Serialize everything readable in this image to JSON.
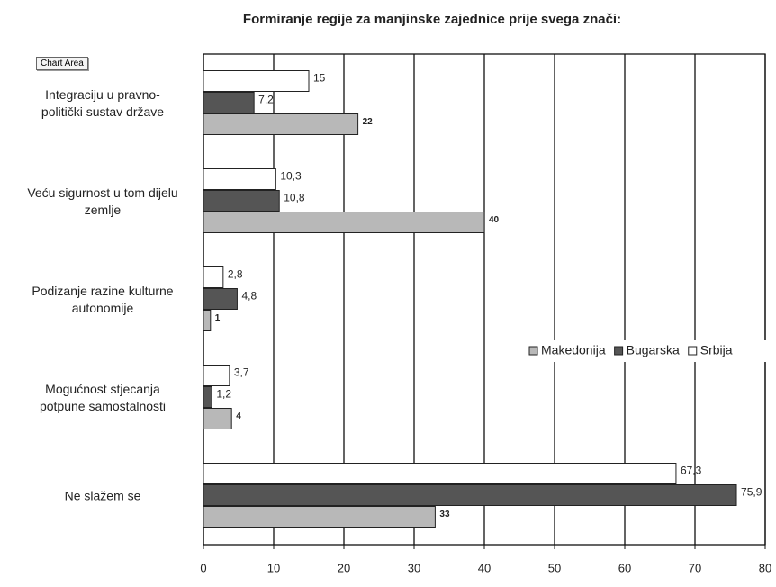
{
  "chart_data": {
    "type": "bar",
    "orientation": "horizontal",
    "title": "Formiranje regije za manjinske zajednice prije svega znači:",
    "tooltip": "Chart Area",
    "categories": [
      "Integraciju u pravno-\npolitički sustav države",
      "Veću sigurnost u tom dijelu\nzemlje",
      "Podizanje razine kulturne\nautonomije",
      "Mogućnost stjecanja\npotpune samostalnosti",
      "Ne slažem se"
    ],
    "series": [
      {
        "name": "Makedonija",
        "color": "#b8b8b8",
        "values": [
          22,
          40,
          1,
          4,
          33
        ]
      },
      {
        "name": "Bugarska",
        "color": "#555555",
        "values": [
          7.2,
          10.8,
          4.8,
          1.2,
          75.9
        ],
        "value_labels": [
          "7,2",
          "10,8",
          "4,8",
          "1,2",
          "75,9"
        ]
      },
      {
        "name": "Srbija",
        "color": "#ffffff",
        "values": [
          15,
          10.3,
          2.8,
          3.7,
          67.3
        ],
        "value_labels": [
          "15",
          "10,3",
          "2,8",
          "3,7",
          "67,3"
        ]
      }
    ],
    "xlim": [
      0,
      80
    ],
    "xticks": [
      0,
      10,
      20,
      30,
      40,
      50,
      60,
      70,
      80
    ],
    "grid": true,
    "legend": "right"
  }
}
